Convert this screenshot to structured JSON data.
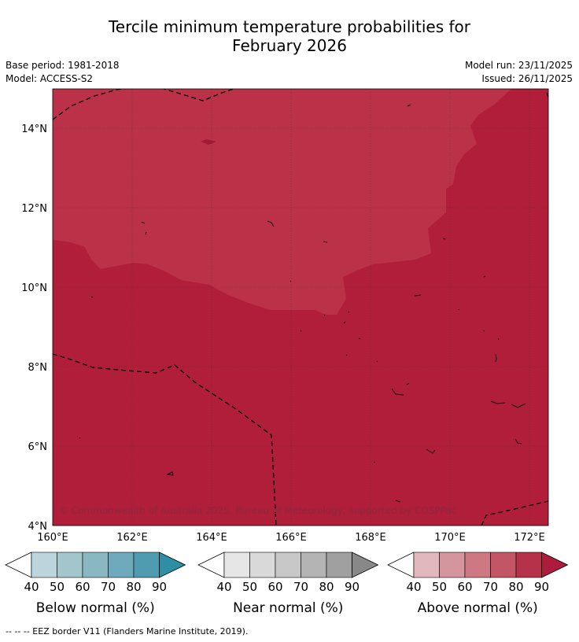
{
  "title": {
    "line1": "Tercile minimum temperature probabilities for",
    "line2": "February 2026"
  },
  "meta": {
    "base_period": "Base period: 1981-2018",
    "model": "Model: ACCESS-S2",
    "model_run": "Model run: 23/11/2025",
    "issued": "Issued: 26/11/2025"
  },
  "map": {
    "lat_range": [
      4,
      15
    ],
    "lon_range": [
      160,
      172.5
    ],
    "lat_ticks": [
      "14°N",
      "12°N",
      "10°N",
      "8°N",
      "6°N",
      "4°N"
    ],
    "lon_ticks": [
      "160°E",
      "162°E",
      "164°E",
      "166°E",
      "168°E",
      "170°E",
      "172°E"
    ],
    "copyright": "© Commonwealth of Australia 2025, Bureau of Meteorology, supported by COSPPac",
    "colors": {
      "above_80": "#bb3147",
      "above_90": "#b01e3a"
    }
  },
  "colorbars": [
    {
      "name": "below",
      "label": "Below normal (%)",
      "ticks": [
        "40",
        "50",
        "60",
        "70",
        "80",
        "90"
      ],
      "colors": [
        "#bcd4dc",
        "#a3c6cd",
        "#89b8c3",
        "#6eaabb",
        "#4f9cb0",
        "#2e8ea4"
      ]
    },
    {
      "name": "near",
      "label": "Near normal (%)",
      "ticks": [
        "40",
        "50",
        "60",
        "70",
        "80",
        "90"
      ],
      "colors": [
        "#e6e6e6",
        "#d9d9d9",
        "#c8c8c8",
        "#b4b4b4",
        "#a0a0a0",
        "#888888"
      ]
    },
    {
      "name": "above",
      "label": "Above normal (%)",
      "ticks": [
        "40",
        "50",
        "60",
        "70",
        "80",
        "90"
      ],
      "colors": [
        "#e2b7bd",
        "#d4959e",
        "#cd7882",
        "#c35665",
        "#b6314a",
        "#ad1c3c"
      ]
    }
  ],
  "footer": "--  --  -- EEZ border V11 (Flanders Marine Institute, 2019)."
}
